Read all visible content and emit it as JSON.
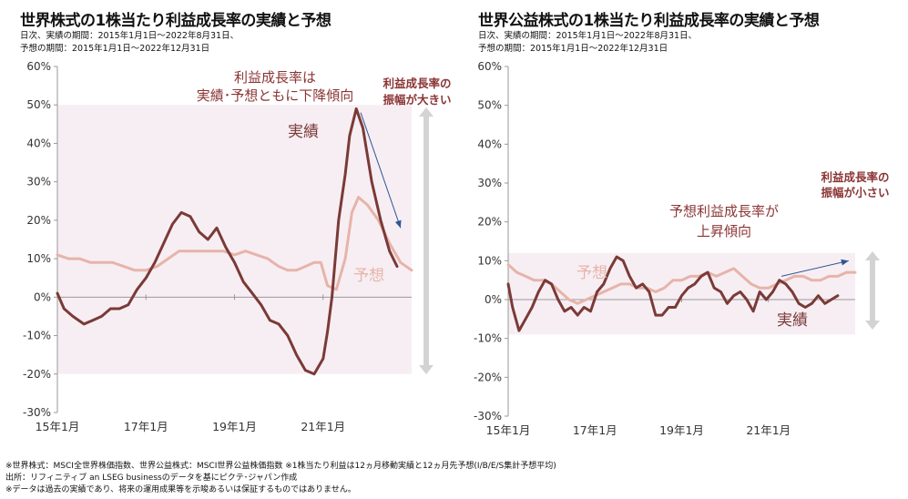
{
  "panels": [
    {
      "title": "世界株式の1株当たり利益成長率の実績と予想",
      "sub1": "日次、実績の期間：2015年1月1日～2022年8月31日、",
      "sub2": "予想の期間：2015年1月1日～2022年12月31日",
      "annot_main_1": "利益成長率は",
      "annot_main_2": "実績･予想ともに下降傾向",
      "annot_side_1": "利益成長率の",
      "annot_side_2": "振幅が大きい",
      "label_actual": "実績",
      "label_forecast": "予想"
    },
    {
      "title": "世界公益株式の1株当たり利益成長率の実績と予想",
      "sub1": "日次、実績の期間：2015年1月1日～2022年8月31日、",
      "sub2": "予想の期間：2015年1月1日～2022年12月31日",
      "annot_main_1": "予想利益成長率が",
      "annot_main_2": "上昇傾向",
      "annot_side_1": "利益成長率の",
      "annot_side_2": "振幅が小さい",
      "label_actual": "実績",
      "label_forecast": "予想"
    }
  ],
  "footer": {
    "line1": "※世界株式：MSCI全世界株価指数、世界公益株式：MSCI世界公益株価指数 ※1株当たり利益は12ヵ月移動実績と12ヵ月先予想(I/B/E/S集計予想平均)",
    "line2": "出所：リフィニティブ an LSEG businessのデータを基にピクテ･ジャパン作成",
    "line3": "※データは過去の実績であり、将来の運用成果等を示唆あるいは保証するものではありません。"
  },
  "colors": {
    "actual": "#7a3a37",
    "forecast": "#e6b4aa",
    "band": "#f7eef3",
    "annotation": "#8b3535",
    "arrow": "#2f5597",
    "range_arrow": "#d3d3d3"
  },
  "chart_data": [
    {
      "type": "line",
      "title": "世界株式の1株当たり利益成長率の実績と予想",
      "x_tick_labels": [
        "15年1月",
        "17年1月",
        "19年1月",
        "21年1月"
      ],
      "y_tick_labels": [
        "60%",
        "50%",
        "40%",
        "30%",
        "20%",
        "10%",
        "0%",
        "-10%",
        "-20%",
        "-30%"
      ],
      "ylim": [
        -30,
        60
      ],
      "xlim": [
        2015.0,
        2023.0
      ],
      "band": [
        -20,
        50
      ],
      "grid": false,
      "series": [
        {
          "name": "実績",
          "x": [
            2015.0,
            2015.15,
            2015.35,
            2015.6,
            2015.8,
            2016.0,
            2016.2,
            2016.4,
            2016.6,
            2016.8,
            2017.0,
            2017.2,
            2017.4,
            2017.6,
            2017.8,
            2018.0,
            2018.2,
            2018.4,
            2018.6,
            2018.8,
            2019.0,
            2019.2,
            2019.4,
            2019.6,
            2019.8,
            2020.0,
            2020.2,
            2020.4,
            2020.6,
            2020.8,
            2021.0,
            2021.1,
            2021.2,
            2021.35,
            2021.5,
            2021.6,
            2021.75,
            2021.9,
            2022.1,
            2022.3,
            2022.5,
            2022.67
          ],
          "values": [
            1,
            -3,
            -5,
            -7,
            -6,
            -5,
            -3,
            -3,
            -2,
            2,
            5,
            9,
            14,
            19,
            22,
            21,
            17,
            15,
            18,
            13,
            9,
            4,
            1,
            -2,
            -6,
            -7,
            -10,
            -15,
            -19,
            -20,
            -16,
            -9,
            0,
            20,
            32,
            42,
            49,
            44,
            30,
            20,
            12,
            8
          ]
        },
        {
          "name": "予想",
          "x": [
            2015.0,
            2015.25,
            2015.5,
            2015.75,
            2016.0,
            2016.25,
            2016.5,
            2016.75,
            2017.0,
            2017.25,
            2017.5,
            2017.75,
            2018.0,
            2018.25,
            2018.5,
            2018.75,
            2019.0,
            2019.25,
            2019.5,
            2019.75,
            2020.0,
            2020.2,
            2020.4,
            2020.6,
            2020.8,
            2020.95,
            2021.1,
            2021.3,
            2021.5,
            2021.65,
            2021.8,
            2022.0,
            2022.25,
            2022.5,
            2022.75,
            2023.0
          ],
          "values": [
            11,
            10,
            10,
            9,
            9,
            9,
            8,
            7,
            7,
            8,
            10,
            12,
            12,
            12,
            12,
            12,
            11,
            12,
            11,
            10,
            8,
            7,
            7,
            8,
            9,
            9,
            3,
            2,
            10,
            22,
            26,
            24,
            20,
            14,
            9,
            7
          ]
        }
      ]
    },
    {
      "type": "line",
      "title": "世界公益株式の1株当たり利益成長率の実績と予想",
      "x_tick_labels": [
        "15年1月",
        "17年1月",
        "19年1月",
        "21年1月"
      ],
      "y_tick_labels": [
        "60%",
        "50%",
        "40%",
        "30%",
        "20%",
        "10%",
        "0%",
        "-10%",
        "-20%",
        "-30%"
      ],
      "ylim": [
        -30,
        60
      ],
      "xlim": [
        2015.0,
        2023.0
      ],
      "band": [
        -9,
        12
      ],
      "grid": false,
      "series": [
        {
          "name": "実績",
          "x": [
            2015.0,
            2015.1,
            2015.25,
            2015.4,
            2015.55,
            2015.7,
            2015.85,
            2016.0,
            2016.15,
            2016.3,
            2016.45,
            2016.6,
            2016.75,
            2016.9,
            2017.05,
            2017.2,
            2017.35,
            2017.5,
            2017.65,
            2017.8,
            2017.95,
            2018.1,
            2018.25,
            2018.4,
            2018.55,
            2018.7,
            2018.85,
            2019.0,
            2019.15,
            2019.3,
            2019.45,
            2019.6,
            2019.75,
            2019.9,
            2020.05,
            2020.2,
            2020.35,
            2020.5,
            2020.65,
            2020.8,
            2020.95,
            2021.1,
            2021.25,
            2021.4,
            2021.55,
            2021.7,
            2021.85,
            2022.0,
            2022.15,
            2022.3,
            2022.45,
            2022.6
          ],
          "values": [
            4,
            -2,
            -8,
            -5,
            -2,
            2,
            5,
            4,
            0,
            -3,
            -2,
            -4,
            -2,
            -3,
            2,
            4,
            8,
            11,
            10,
            6,
            3,
            4,
            2,
            -4,
            -4,
            -2,
            -2,
            1,
            3,
            4,
            6,
            7,
            3,
            2,
            -1,
            1,
            2,
            0,
            -3,
            2,
            0,
            2,
            5,
            4,
            2,
            -1,
            -2,
            -1,
            1,
            -1,
            0,
            1
          ]
        },
        {
          "name": "予想",
          "x": [
            2015.0,
            2015.2,
            2015.4,
            2015.6,
            2015.8,
            2016.0,
            2016.2,
            2016.4,
            2016.6,
            2016.8,
            2017.0,
            2017.2,
            2017.4,
            2017.6,
            2017.8,
            2018.0,
            2018.2,
            2018.4,
            2018.6,
            2018.8,
            2019.0,
            2019.2,
            2019.4,
            2019.6,
            2019.8,
            2020.0,
            2020.2,
            2020.4,
            2020.6,
            2020.8,
            2021.0,
            2021.2,
            2021.4,
            2021.6,
            2021.8,
            2022.0,
            2022.2,
            2022.4,
            2022.6,
            2022.8,
            2023.0
          ],
          "values": [
            9,
            7,
            6,
            5,
            5,
            4,
            2,
            0,
            -1,
            0,
            1,
            2,
            3,
            4,
            4,
            3,
            3,
            2,
            3,
            5,
            5,
            6,
            6,
            7,
            6,
            7,
            8,
            6,
            4,
            3,
            3,
            4,
            5,
            6,
            6,
            5,
            5,
            6,
            6,
            7,
            7
          ]
        }
      ]
    }
  ]
}
